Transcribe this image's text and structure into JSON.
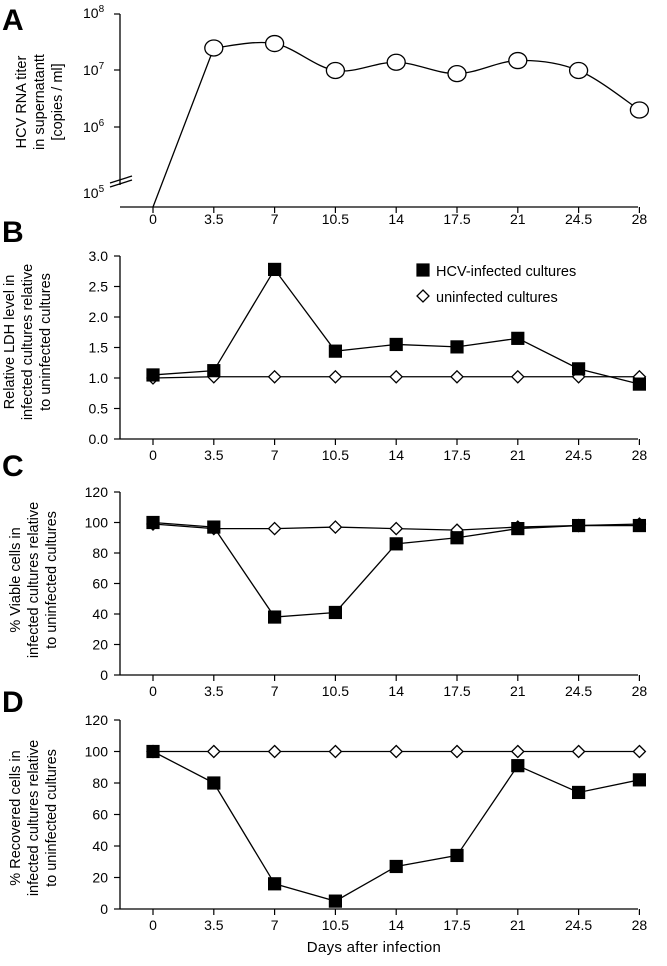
{
  "figure": {
    "x_axis_title": "Days after infection"
  },
  "chart_data": [
    {
      "type": "line",
      "panel_label": "A",
      "x": [
        0,
        3.5,
        7,
        10.5,
        14,
        17.5,
        21,
        24.5,
        28
      ],
      "x_tick_labels": [
        "0",
        "3.5",
        "7",
        "10.5",
        "14",
        "17.5",
        "21",
        "24.5",
        "28"
      ],
      "ylabel_lines": [
        "HCV RNA titer",
        "in supernatantt",
        "[copies / ml]"
      ],
      "y_scale": "log",
      "ylim": [
        100000,
        100000000
      ],
      "y_tick_labels": [
        {
          "base": "10",
          "exp": "8",
          "value": 100000000
        },
        {
          "base": "10",
          "exp": "7",
          "value": 10000000
        },
        {
          "base": "10",
          "exp": "6",
          "value": 1000000
        },
        {
          "base": "10",
          "exp": "5",
          "value": 100000
        }
      ],
      "axis_break": true,
      "grid": false,
      "series": [
        {
          "marker": "open-circle",
          "curve": "smooth",
          "values": [
            null,
            25000000,
            30000000,
            10000000,
            14000000,
            8800000,
            15000000,
            10000000,
            2000000
          ],
          "start_line_from_x0_below_axis": true
        }
      ]
    },
    {
      "type": "line",
      "panel_label": "B",
      "x": [
        0,
        3.5,
        7,
        10.5,
        14,
        17.5,
        21,
        24.5,
        28
      ],
      "x_tick_labels": [
        "0",
        "3.5",
        "7",
        "10.5",
        "14",
        "17.5",
        "21",
        "24.5",
        "28"
      ],
      "ylabel_lines": [
        "Relative LDH level in",
        "infected cultures relative",
        "to uninfected cultures"
      ],
      "ylim": [
        0,
        3.0
      ],
      "y_ticks": [
        0,
        0.5,
        1.0,
        1.5,
        2.0,
        2.5,
        3.0
      ],
      "y_tick_labels": [
        "0.0",
        "0.5",
        "1.0",
        "1.5",
        "2.0",
        "2.5",
        "3.0"
      ],
      "grid": false,
      "legend_position": "top-right",
      "series": [
        {
          "name": "HCV-infected cultures",
          "marker": "filled-square",
          "values": [
            1.05,
            1.12,
            2.78,
            1.44,
            1.55,
            1.51,
            1.65,
            1.15,
            0.9
          ]
        },
        {
          "name": "uninfected cultures",
          "marker": "open-diamond",
          "values": [
            1.0,
            1.02,
            1.02,
            1.02,
            1.02,
            1.02,
            1.02,
            1.02,
            1.02
          ]
        }
      ]
    },
    {
      "type": "line",
      "panel_label": "C",
      "x": [
        0,
        3.5,
        7,
        10.5,
        14,
        17.5,
        21,
        24.5,
        28
      ],
      "x_tick_labels": [
        "0",
        "3.5",
        "7",
        "10.5",
        "14",
        "17.5",
        "21",
        "24.5",
        "28"
      ],
      "ylabel_lines": [
        "% Viable cells in",
        "infected cultures relative",
        "to uninfected cultures"
      ],
      "ylim": [
        0,
        120
      ],
      "y_ticks": [
        0,
        20,
        40,
        60,
        80,
        100,
        120
      ],
      "y_tick_labels": [
        "0",
        "20",
        "40",
        "60",
        "80",
        "100",
        "120"
      ],
      "grid": false,
      "series": [
        {
          "name": "HCV-infected cultures",
          "marker": "filled-square",
          "values": [
            100,
            97,
            38,
            41,
            86,
            90,
            96,
            98,
            98
          ]
        },
        {
          "name": "uninfected cultures",
          "marker": "open-diamond",
          "values": [
            99,
            96,
            96,
            97,
            96,
            95,
            97,
            98,
            99
          ]
        }
      ]
    },
    {
      "type": "line",
      "panel_label": "D",
      "x": [
        0,
        3.5,
        7,
        10.5,
        14,
        17.5,
        21,
        24.5,
        28
      ],
      "x_tick_labels": [
        "0",
        "3.5",
        "7",
        "10.5",
        "14",
        "17.5",
        "21",
        "24.5",
        "28"
      ],
      "ylabel_lines": [
        "% Recovered cells in",
        "infected cultures relative",
        "to uninfected cultures"
      ],
      "ylim": [
        0,
        120
      ],
      "y_ticks": [
        0,
        20,
        40,
        60,
        80,
        100,
        120
      ],
      "y_tick_labels": [
        "0",
        "20",
        "40",
        "60",
        "80",
        "100",
        "120"
      ],
      "grid": false,
      "xlabel": "Days after infection",
      "series": [
        {
          "name": "HCV-infected cultures",
          "marker": "filled-square",
          "values": [
            100,
            80,
            16,
            5,
            27,
            34,
            91,
            74,
            82
          ]
        },
        {
          "name": "uninfected cultures",
          "marker": "open-diamond",
          "values": [
            100,
            100,
            100,
            100,
            100,
            100,
            100,
            100,
            100
          ]
        }
      ]
    }
  ]
}
